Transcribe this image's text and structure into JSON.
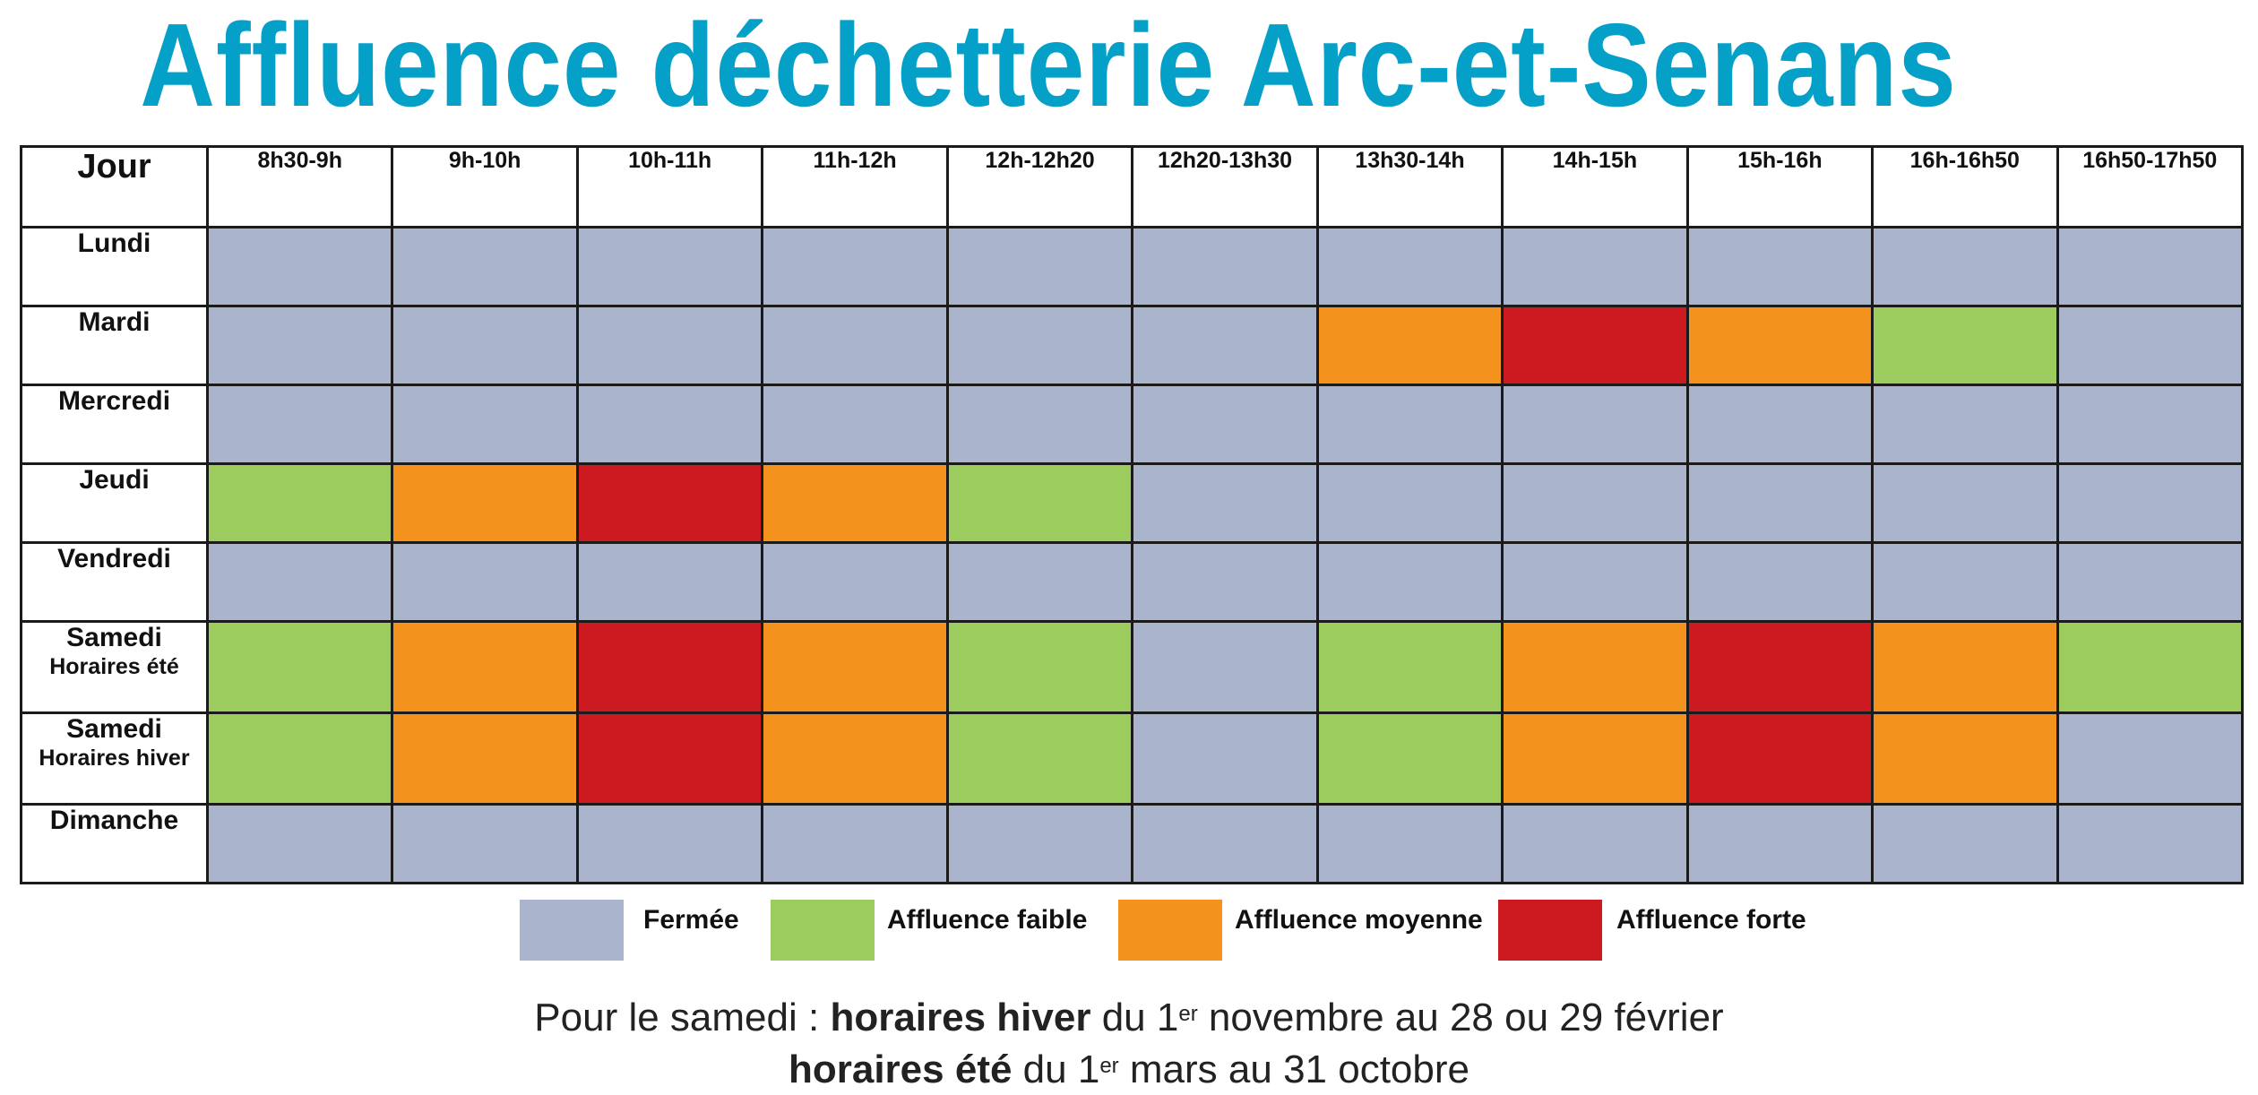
{
  "title": "Affluence déchetterie Arc-et-Senans",
  "colors": {
    "closed": "#aab4cc",
    "low": "#9ccb5e",
    "medium": "#f3921d",
    "high": "#cd1a20"
  },
  "table": {
    "day_header": "Jour",
    "slots": [
      "8h30-9h",
      "9h-10h",
      "10h-11h",
      "11h-12h",
      "12h-12h20",
      "12h20-13h30",
      "13h30-14h",
      "14h-15h",
      "15h-16h",
      "16h-16h50",
      "16h50-17h50"
    ],
    "rows": [
      {
        "day": "Lundi",
        "sub": "",
        "levels": [
          "closed",
          "closed",
          "closed",
          "closed",
          "closed",
          "closed",
          "closed",
          "closed",
          "closed",
          "closed",
          "closed"
        ]
      },
      {
        "day": "Mardi",
        "sub": "",
        "levels": [
          "closed",
          "closed",
          "closed",
          "closed",
          "closed",
          "closed",
          "medium",
          "high",
          "medium",
          "low",
          "closed"
        ]
      },
      {
        "day": "Mercredi",
        "sub": "",
        "levels": [
          "closed",
          "closed",
          "closed",
          "closed",
          "closed",
          "closed",
          "closed",
          "closed",
          "closed",
          "closed",
          "closed"
        ]
      },
      {
        "day": "Jeudi",
        "sub": "",
        "levels": [
          "low",
          "medium",
          "high",
          "medium",
          "low",
          "closed",
          "closed",
          "closed",
          "closed",
          "closed",
          "closed"
        ]
      },
      {
        "day": "Vendredi",
        "sub": "",
        "levels": [
          "closed",
          "closed",
          "closed",
          "closed",
          "closed",
          "closed",
          "closed",
          "closed",
          "closed",
          "closed",
          "closed"
        ]
      },
      {
        "day": "Samedi",
        "sub": "Horaires été",
        "levels": [
          "low",
          "medium",
          "high",
          "medium",
          "low",
          "closed",
          "low",
          "medium",
          "high",
          "medium",
          "low"
        ]
      },
      {
        "day": "Samedi",
        "sub": "Horaires hiver",
        "levels": [
          "low",
          "medium",
          "high",
          "medium",
          "low",
          "closed",
          "low",
          "medium",
          "high",
          "medium",
          "closed"
        ]
      },
      {
        "day": "Dimanche",
        "sub": "",
        "levels": [
          "closed",
          "closed",
          "closed",
          "closed",
          "closed",
          "closed",
          "closed",
          "closed",
          "closed",
          "closed",
          "closed"
        ]
      }
    ]
  },
  "legend": [
    {
      "level": "closed",
      "label": "Fermée"
    },
    {
      "level": "low",
      "label": "Affluence faible"
    },
    {
      "level": "medium",
      "label": "Affluence moyenne"
    },
    {
      "level": "high",
      "label": "Affluence forte"
    }
  ],
  "footer": {
    "line1_prefix": "Pour le samedi : ",
    "line1_bold": "horaires hiver",
    "line1_mid": " du 1",
    "line1_sup": "er",
    "line1_suffix": " novembre au 28 ou 29 février",
    "line2_bold": "horaires été",
    "line2_mid": " du 1",
    "line2_sup": "er",
    "line2_suffix": " mars au 31 octobre"
  }
}
